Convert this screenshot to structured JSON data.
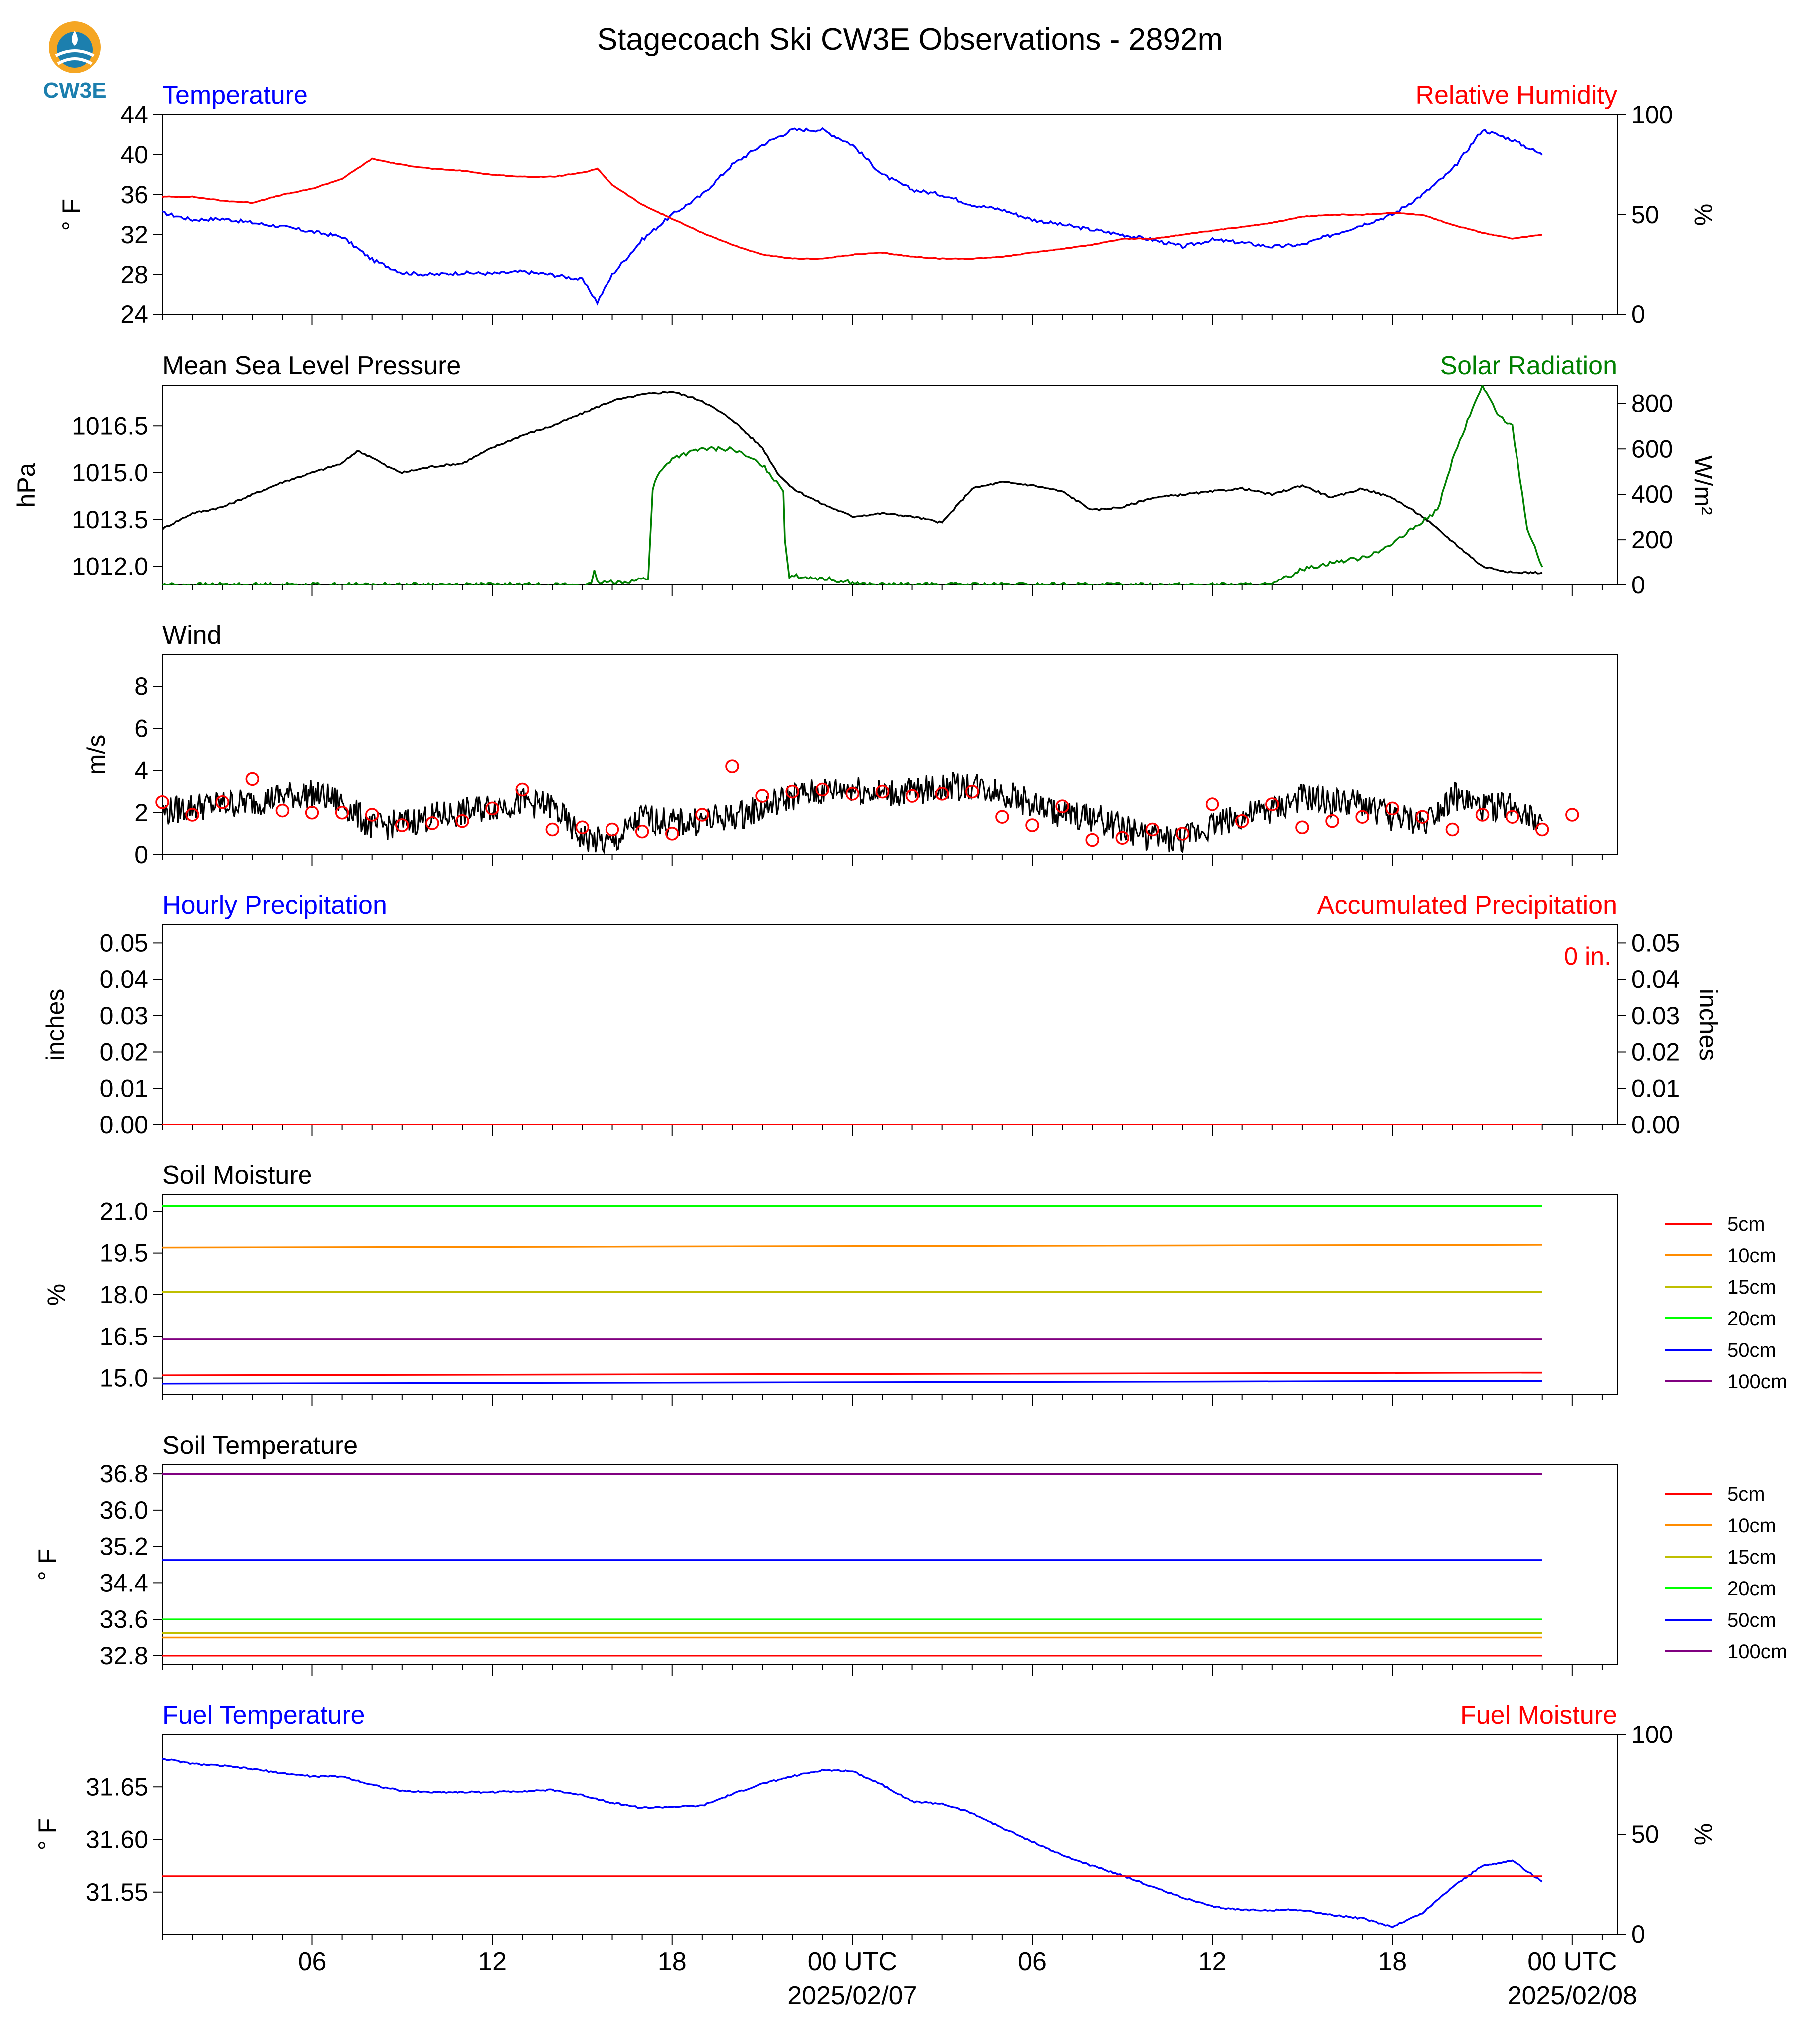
{
  "title": "Stagecoach Ski CW3E Observations - 2892m",
  "logo": {
    "text": "CW3E",
    "icon": "cw3e-logo-icon",
    "colors": [
      "#f5a623",
      "#1c7fae"
    ]
  },
  "colors": {
    "blue": "#0000ff",
    "red": "#ff0000",
    "green": "#008000",
    "black": "#000000",
    "orange": "#ff8c00",
    "olive": "#bfbf00",
    "lime": "#00ff00",
    "purple": "#800080"
  },
  "chart_data": [
    {
      "id": "temp_rh",
      "type": "line",
      "left_title": "Temperature",
      "right_title": "Relative Humidity",
      "left_ylabel": "° F",
      "right_ylabel": "%",
      "left_ylim": [
        24,
        44
      ],
      "left_ticks": [
        "24",
        "28",
        "32",
        "36",
        "40",
        "44"
      ],
      "right_ylim": [
        0,
        100
      ],
      "right_ticks": [
        "0",
        "50",
        "100"
      ],
      "x_hours": [
        0,
        1,
        2,
        3,
        4,
        5,
        6,
        7,
        8,
        9,
        10,
        11,
        12,
        13,
        14,
        14.5,
        15,
        16,
        17,
        18,
        19,
        20,
        21,
        22,
        23,
        24,
        25,
        26,
        27,
        28,
        29,
        30,
        31,
        32,
        33,
        34,
        35,
        36,
        37,
        38,
        39,
        40,
        41,
        42,
        43,
        44,
        45,
        46
      ],
      "series": [
        {
          "name": "Temperature",
          "axis": "left",
          "color": "#0000ff",
          "values": [
            34.2,
            33.5,
            33.6,
            33.2,
            32.8,
            32.3,
            31.8,
            29.5,
            28.2,
            28.0,
            28.2,
            28.1,
            28.3,
            28.0,
            27.5,
            25.2,
            28.0,
            31.5,
            34.0,
            36.0,
            39.0,
            41.0,
            42.5,
            42.5,
            41.0,
            38.0,
            36.5,
            36.0,
            35.0,
            34.5,
            33.5,
            33.0,
            32.5,
            32.0,
            31.5,
            30.8,
            31.5,
            31.2,
            30.8,
            31.0,
            32.0,
            33.0,
            34.0,
            36.0,
            38.5,
            42.5,
            41.5,
            40.0
          ]
        },
        {
          "name": "Relative Humidity",
          "axis": "right",
          "color": "#ff0000",
          "values": [
            59,
            59,
            57,
            56,
            60,
            63,
            68,
            78,
            75,
            73,
            72,
            70,
            69,
            69,
            71,
            73,
            65,
            55,
            48,
            41,
            35,
            30,
            28,
            28,
            30,
            31,
            29,
            28,
            28,
            29,
            31,
            33,
            35,
            38,
            38,
            40,
            42,
            44,
            46,
            49,
            50,
            50,
            51,
            50,
            45,
            41,
            38,
            40
          ]
        }
      ]
    },
    {
      "id": "mslp_solar",
      "type": "line",
      "left_title": "Mean Sea Level Pressure",
      "right_title": "Solar Radiation",
      "left_ylabel": "hPa",
      "right_ylabel": "W/m²",
      "left_ylim": [
        1011.4,
        1017.8
      ],
      "left_ticks": [
        "1012.0",
        "1013.5",
        "1015.0",
        "1016.5"
      ],
      "right_ylim": [
        0,
        880
      ],
      "right_ticks": [
        "0",
        "200",
        "400",
        "600",
        "800"
      ],
      "x_hours": [
        0,
        1,
        2,
        3,
        4,
        5,
        6,
        6.5,
        7,
        7.5,
        8,
        9,
        10,
        11,
        12,
        13,
        14,
        15,
        16,
        17,
        18,
        19,
        20,
        20.5,
        21,
        22,
        23,
        24,
        25,
        26,
        27,
        28,
        29,
        30,
        31,
        32,
        33,
        34,
        35,
        36,
        37,
        38,
        39,
        40,
        41,
        42,
        43,
        44,
        45,
        46
      ],
      "series": [
        {
          "name": "Mean Sea Level Pressure",
          "axis": "left",
          "color": "#000000",
          "values": [
            1013.2,
            1013.7,
            1013.9,
            1014.3,
            1014.7,
            1015.0,
            1015.3,
            1015.7,
            1015.5,
            1015.2,
            1015.0,
            1015.2,
            1015.3,
            1015.8,
            1016.2,
            1016.5,
            1016.9,
            1017.3,
            1017.5,
            1017.6,
            1017.3,
            1016.7,
            1015.8,
            1015.0,
            1014.5,
            1014.0,
            1013.6,
            1013.7,
            1013.6,
            1013.4,
            1014.5,
            1014.7,
            1014.6,
            1014.4,
            1013.8,
            1013.9,
            1014.2,
            1014.3,
            1014.4,
            1014.5,
            1014.3,
            1014.6,
            1014.2,
            1014.5,
            1014.2,
            1013.6,
            1012.8,
            1012.0,
            1011.8,
            1011.8
          ]
        },
        {
          "name": "Solar Radiation",
          "axis": "right",
          "color": "#008000",
          "x_hours": [
            0,
            13.5,
            14.3,
            14.4,
            14.5,
            15.5,
            16.2,
            16.35,
            16.5,
            17,
            18,
            19,
            20,
            20.7,
            20.75,
            20.9,
            22,
            23,
            23.5,
            37,
            38,
            39,
            40,
            41,
            42,
            42.5,
            43,
            43.5,
            44,
            44.2,
            44.5,
            45,
            45.5,
            46
          ],
          "values": [
            0,
            0,
            0,
            60,
            10,
            15,
            30,
            420,
            480,
            560,
            600,
            600,
            530,
            420,
            200,
            40,
            30,
            10,
            0,
            0,
            70,
            100,
            120,
            180,
            280,
            330,
            550,
            720,
            880,
            830,
            750,
            700,
            250,
            80
          ]
        }
      ]
    },
    {
      "id": "wind",
      "type": "line",
      "left_title": "Wind",
      "left_ylabel": "m/s",
      "left_ylim": [
        0,
        9.5
      ],
      "left_ticks": [
        "0",
        "2",
        "4",
        "6",
        "8"
      ],
      "x_hours": [
        0,
        1,
        2,
        3,
        4,
        5,
        6,
        7,
        8,
        9,
        10,
        11,
        12,
        13,
        13.5,
        14,
        15,
        16,
        17,
        18,
        19,
        20,
        21,
        22,
        23,
        24,
        25,
        26,
        27,
        28,
        29,
        30,
        31,
        32,
        33,
        34,
        35,
        36,
        37,
        38,
        39,
        40,
        41,
        42,
        43,
        44,
        45,
        46
      ],
      "series": [
        {
          "name": "Wind Speed",
          "axis": "left",
          "color": "#000000",
          "values": [
            2.0,
            2.3,
            2.4,
            2.5,
            2.8,
            2.9,
            2.5,
            1.3,
            1.5,
            1.8,
            2.0,
            2.3,
            2.5,
            2.3,
            1.5,
            0.8,
            0.5,
            1.8,
            1.5,
            1.6,
            1.8,
            2.2,
            2.8,
            3.0,
            3.2,
            2.9,
            3.0,
            3.2,
            3.3,
            3.0,
            2.4,
            1.9,
            1.8,
            1.3,
            0.8,
            0.7,
            1.5,
            1.8,
            2.1,
            2.7,
            2.5,
            2.4,
            1.8,
            1.5,
            2.8,
            2.2,
            2.4,
            1.6
          ]
        }
      ],
      "barb_hours": [
        0,
        1,
        2,
        3,
        4,
        5,
        6,
        7,
        8,
        9,
        10,
        11,
        12,
        13,
        14,
        15,
        16,
        17,
        18,
        19,
        20,
        21,
        22,
        23,
        24,
        25,
        26,
        27,
        28,
        29,
        30,
        31,
        32,
        33,
        34,
        35,
        36,
        37,
        38,
        39,
        40,
        41,
        42,
        43,
        44,
        45,
        46,
        47
      ],
      "barb_speeds": [
        2.5,
        1.9,
        2.5,
        3.6,
        2.1,
        2.0,
        2.0,
        1.9,
        1.4,
        1.5,
        1.6,
        2.2,
        3.1,
        1.2,
        1.3,
        1.2,
        1.1,
        1.0,
        1.9,
        4.2,
        2.8,
        3.0,
        3.1,
        2.9,
        3.0,
        2.8,
        2.9,
        3.0,
        1.8,
        1.4,
        2.3,
        0.7,
        0.8,
        1.2,
        1.0,
        2.4,
        1.6,
        2.4,
        1.3,
        1.6,
        1.8,
        2.2,
        1.8,
        1.2,
        1.9,
        1.8,
        1.2,
        1.9
      ],
      "barb_color": "#ff0000"
    },
    {
      "id": "precip",
      "type": "line",
      "left_title": "Hourly Precipitation",
      "right_title": "Accumulated Precipitation",
      "left_ylabel": "inches",
      "right_ylabel": "inches",
      "left_ylim": [
        0,
        0.055
      ],
      "left_ticks": [
        "0.00",
        "0.01",
        "0.02",
        "0.03",
        "0.04",
        "0.05"
      ],
      "right_ticks": [
        "0.00",
        "0.01",
        "0.02",
        "0.03",
        "0.04",
        "0.05"
      ],
      "annotation": "0 in.",
      "x_hours": [
        0,
        46
      ],
      "series": [
        {
          "name": "Hourly Precipitation",
          "axis": "left",
          "color": "#0000ff",
          "values": [
            0,
            0
          ]
        },
        {
          "name": "Accumulated Precipitation",
          "axis": "left",
          "color": "#ff0000",
          "values": [
            0,
            0
          ]
        }
      ]
    },
    {
      "id": "soil_moisture",
      "type": "line",
      "left_title": "Soil Moisture",
      "left_ylabel": "%",
      "left_ylim": [
        14.4,
        21.6
      ],
      "left_ticks": [
        "15.0",
        "16.5",
        "18.0",
        "19.5",
        "21.0"
      ],
      "x_hours": [
        0,
        46
      ],
      "series": [
        {
          "name": "5cm",
          "color": "#ff0000",
          "values": [
            15.1,
            15.2
          ]
        },
        {
          "name": "10cm",
          "color": "#ff8c00",
          "values": [
            19.7,
            19.8
          ]
        },
        {
          "name": "15cm",
          "color": "#bfbf00",
          "values": [
            18.1,
            18.1
          ]
        },
        {
          "name": "20cm",
          "color": "#00ff00",
          "values": [
            21.2,
            21.2
          ]
        },
        {
          "name": "50cm",
          "color": "#0000ff",
          "values": [
            14.8,
            14.9
          ]
        },
        {
          "name": "100cm",
          "color": "#800080",
          "values": [
            16.4,
            16.4
          ]
        }
      ]
    },
    {
      "id": "soil_temp",
      "type": "line",
      "left_title": "Soil Temperature",
      "left_ylabel": "° F",
      "left_ylim": [
        32.6,
        37.0
      ],
      "left_ticks": [
        "32.8",
        "33.6",
        "34.4",
        "35.2",
        "36.0",
        "36.8"
      ],
      "x_hours": [
        0,
        46
      ],
      "series": [
        {
          "name": "5cm",
          "color": "#ff0000",
          "values": [
            32.8,
            32.8
          ]
        },
        {
          "name": "10cm",
          "color": "#ff8c00",
          "values": [
            33.2,
            33.2
          ]
        },
        {
          "name": "15cm",
          "color": "#bfbf00",
          "values": [
            33.3,
            33.3
          ]
        },
        {
          "name": "20cm",
          "color": "#00ff00",
          "values": [
            33.6,
            33.6
          ]
        },
        {
          "name": "50cm",
          "color": "#0000ff",
          "values": [
            34.9,
            34.9
          ]
        },
        {
          "name": "100cm",
          "color": "#800080",
          "values": [
            36.8,
            36.8
          ]
        }
      ]
    },
    {
      "id": "fuel",
      "type": "line",
      "left_title": "Fuel Temperature",
      "right_title": "Fuel Moisture",
      "left_ylabel": "° F",
      "right_ylabel": "%",
      "left_ylim": [
        31.51,
        31.7
      ],
      "left_ticks": [
        "31.55",
        "31.60",
        "31.65"
      ],
      "right_ylim": [
        0,
        100
      ],
      "right_ticks": [
        "0",
        "50",
        "100"
      ],
      "x_hours": [
        0,
        1,
        2,
        3,
        4,
        5,
        6,
        7,
        8,
        9,
        10,
        11,
        12,
        13,
        14,
        15,
        16,
        17,
        18,
        19,
        20,
        21,
        22,
        23,
        24,
        25,
        26,
        27,
        28,
        29,
        30,
        31,
        32,
        33,
        34,
        35,
        36,
        37,
        38,
        39,
        40,
        41,
        42,
        43,
        44,
        45,
        46
      ],
      "series": [
        {
          "name": "Fuel Temperature",
          "axis": "left",
          "color": "#0000ff",
          "values": [
            31.677,
            31.672,
            31.67,
            31.667,
            31.663,
            31.66,
            31.66,
            31.652,
            31.646,
            31.645,
            31.645,
            31.645,
            31.646,
            31.647,
            31.642,
            31.635,
            31.63,
            31.631,
            31.632,
            31.643,
            31.653,
            31.66,
            31.666,
            31.665,
            31.652,
            31.636,
            31.634,
            31.625,
            31.611,
            31.598,
            31.585,
            31.575,
            31.566,
            31.555,
            31.545,
            31.536,
            31.533,
            31.533,
            31.533,
            31.528,
            31.525,
            31.517,
            31.53,
            31.555,
            31.575,
            31.58,
            31.56
          ]
        },
        {
          "name": "Fuel Moisture",
          "axis": "right",
          "color": "#ff0000",
          "values": [
            29,
            29,
            29,
            29,
            29,
            29,
            29,
            29,
            29,
            29,
            29,
            29,
            29,
            29,
            29,
            29,
            29,
            29,
            29,
            29,
            29,
            29,
            29,
            29,
            29,
            29,
            29,
            29,
            29,
            29,
            29,
            29,
            29,
            29,
            29,
            29,
            29,
            29,
            29,
            29,
            29,
            29,
            29,
            29,
            29,
            29,
            29
          ]
        }
      ]
    }
  ],
  "x_axis": {
    "xlim_hours": [
      0,
      48.5
    ],
    "tick_hours": [
      5,
      11,
      17,
      23,
      29,
      35,
      41,
      47
    ],
    "tick_labels": [
      "06",
      "12",
      "18",
      "00 UTC",
      "06",
      "12",
      "18",
      "00 UTC"
    ],
    "date_labels": [
      {
        "hour": 23,
        "text": "2025/02/07"
      },
      {
        "hour": 47,
        "text": "2025/02/08"
      }
    ]
  }
}
